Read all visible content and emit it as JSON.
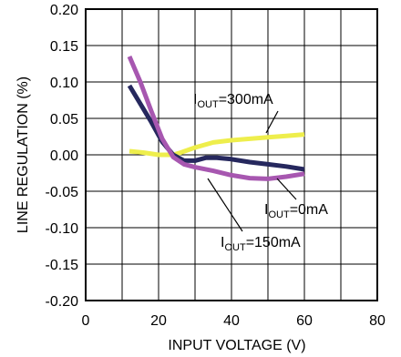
{
  "chart_data": {
    "type": "line",
    "title": "",
    "xlabel": "INPUT VOLTAGE (V)",
    "ylabel": "LINE REGULATION (%)",
    "xlim": [
      0,
      80
    ],
    "ylim": [
      -0.2,
      0.2
    ],
    "x_ticks": [
      "0",
      "20",
      "40",
      "60",
      "80"
    ],
    "y_ticks": [
      "0.20",
      "0.15",
      "0.10",
      "0.05",
      "0.00",
      "-0.05",
      "-0.10",
      "-0.15",
      "-0.20"
    ],
    "grid": true,
    "series": [
      {
        "name_prefix": "I",
        "name_sub": "OUT",
        "name_suffix": "=300mA",
        "color": "#eeee4c",
        "x": [
          12,
          16,
          20,
          24,
          26,
          30,
          35,
          40,
          45,
          50,
          55,
          60
        ],
        "y": [
          0.005,
          0.003,
          0.0,
          0.0,
          0.003,
          0.01,
          0.017,
          0.02,
          0.022,
          0.024,
          0.026,
          0.028
        ]
      },
      {
        "name_prefix": "I",
        "name_sub": "OUT",
        "name_suffix": "=0mA",
        "color": "#26285e",
        "x": [
          12,
          15,
          18,
          21,
          24,
          27,
          30,
          33,
          36,
          40,
          45,
          50,
          55,
          60
        ],
        "y": [
          0.095,
          0.07,
          0.045,
          0.018,
          0.0,
          -0.008,
          -0.008,
          -0.004,
          -0.004,
          -0.006,
          -0.01,
          -0.013,
          -0.016,
          -0.02
        ]
      },
      {
        "name_prefix": "I",
        "name_sub": "OUT",
        "name_suffix": "=150mA",
        "color": "#a757b0",
        "x": [
          12,
          15,
          18,
          21,
          24,
          27,
          30,
          35,
          40,
          45,
          50,
          55,
          60
        ],
        "y": [
          0.135,
          0.1,
          0.06,
          0.022,
          -0.003,
          -0.013,
          -0.017,
          -0.022,
          -0.028,
          -0.032,
          -0.033,
          -0.03,
          -0.026
        ]
      }
    ]
  }
}
